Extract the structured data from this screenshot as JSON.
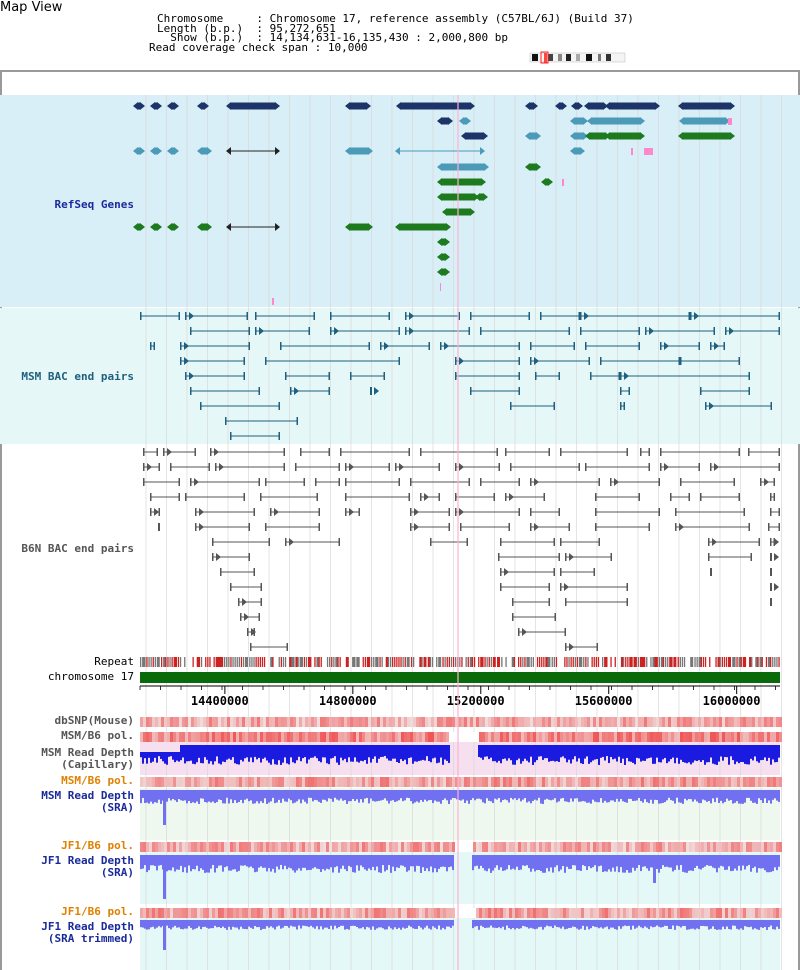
{
  "page": {
    "title": "Map View"
  },
  "header": {
    "rows": [
      {
        "label": "Chromosome     ",
        "value": ": Chromosome 17, reference assembly (C57BL/6J) (Build 37)"
      },
      {
        "label": "Length (b.p.)  ",
        "value": ": 95,272,651"
      },
      {
        "label": "  Show (b.p.)  ",
        "value": ": 14,134,631-16,135,430 : 2,000,800 bp"
      },
      {
        "label": "Read coverage check span ",
        "value": ": 10,000"
      }
    ]
  },
  "tracks": {
    "refseq": {
      "label": "RefSeq Genes",
      "color": "#1a2a9a"
    },
    "msm_bac": {
      "label": "MSM BAC end pairs",
      "color": "#1f5f7f"
    },
    "b6n_bac": {
      "label": "B6N BAC end pairs",
      "color": "#555555"
    },
    "repeat": {
      "label": "Repeat"
    },
    "chromosome": {
      "label": "chromosome 17"
    },
    "dbsnp": {
      "label": "dbSNP(Mouse)"
    },
    "msm_b6_pol": {
      "label": "MSM/B6 pol."
    },
    "msm_rd_cap": {
      "label": "MSM Read Depth\n(Capillary)"
    },
    "msm_b6_pol2": {
      "label": "MSM/B6 pol.",
      "color": "#e08000"
    },
    "msm_rd_sra": {
      "label": "MSM Read Depth\n(SRA)",
      "color": "#1a2a9a"
    },
    "jf1_b6_pol": {
      "label": "JF1/B6 pol.",
      "color": "#e08000"
    },
    "jf1_rd_sra": {
      "label": "JF1 Read Depth\n(SRA)",
      "color": "#1a2a9a"
    },
    "jf1_b6_pol2": {
      "label": "JF1/B6 pol.",
      "color": "#e08000"
    },
    "jf1_rd_trim": {
      "label": "JF1 Read Depth\n(SRA trimmed)",
      "color": "#1a2a9a"
    }
  },
  "axis": {
    "ticks": [
      "14400000",
      "14800000",
      "15200000",
      "15600000",
      "16000000"
    ],
    "tick_values": [
      14400000,
      14800000,
      15200000,
      15600000,
      16000000
    ],
    "start": 14134631,
    "end": 16135430
  },
  "colors": {
    "refseq_bg": "#d9eff8",
    "msm_bg": "#e6f7f7",
    "gene_dark": "#1c3468",
    "gene_light": "#4a9ab8",
    "gene_green": "#1e7a1e",
    "pink": "#ff88cc",
    "msm_line": "#1f5f7f",
    "b6n_line": "#555555",
    "repeat_red": "#cc2222",
    "repeat_grey": "#777777",
    "chrom_green": "#0a6a0a",
    "snp_red": "#e85050",
    "depth_blue": "#1a1ae0",
    "depth_violet": "#7070f0",
    "depth_bg_pink": "#f6e0f0",
    "depth_bg_green": "#eef8ee",
    "depth_bg_cyan": "#e4f8f8"
  }
}
